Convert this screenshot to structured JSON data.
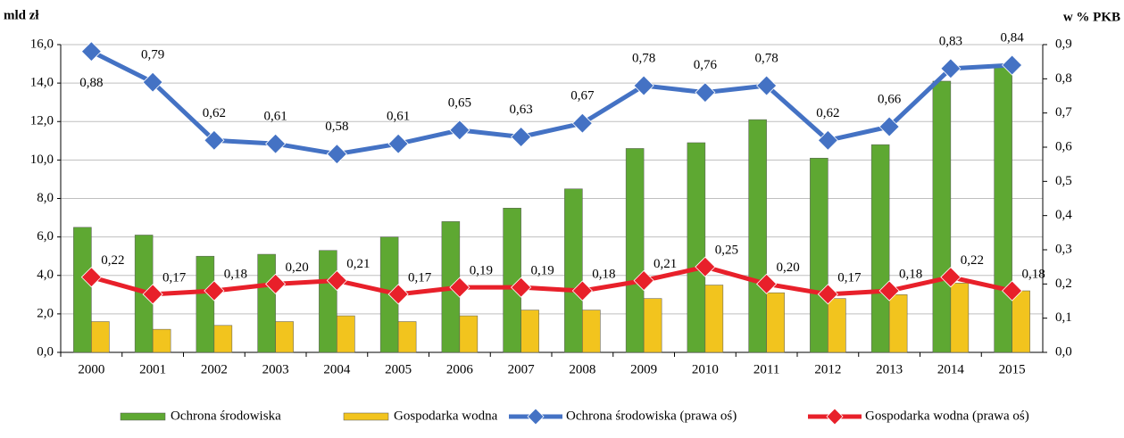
{
  "chart_data": {
    "type": "bar",
    "y_label": "mld zł",
    "y2_label": "w % PKB",
    "categories": [
      "2000",
      "2001",
      "2002",
      "2003",
      "2004",
      "2005",
      "2006",
      "2007",
      "2008",
      "2009",
      "2010",
      "2011",
      "2012",
      "2013",
      "2014",
      "2015"
    ],
    "ylim": [
      0,
      16
    ],
    "yticks": [
      {
        "value": 0,
        "label": "0,0"
      },
      {
        "value": 2,
        "label": "2,0"
      },
      {
        "value": 4,
        "label": "4,0"
      },
      {
        "value": 6,
        "label": "6,0"
      },
      {
        "value": 8,
        "label": "8,0"
      },
      {
        "value": 10,
        "label": "10,0"
      },
      {
        "value": 12,
        "label": "12,0"
      },
      {
        "value": 14,
        "label": "14,0"
      },
      {
        "value": 16,
        "label": "16,0"
      }
    ],
    "y2lim": [
      0,
      0.9
    ],
    "y2ticks": [
      {
        "value": 0,
        "label": "0,0"
      },
      {
        "value": 0.1,
        "label": "0,1"
      },
      {
        "value": 0.2,
        "label": "0,2"
      },
      {
        "value": 0.3,
        "label": "0,3"
      },
      {
        "value": 0.4,
        "label": "0,4"
      },
      {
        "value": 0.5,
        "label": "0,5"
      },
      {
        "value": 0.6,
        "label": "0,6"
      },
      {
        "value": 0.7,
        "label": "0,7"
      },
      {
        "value": 0.8,
        "label": "0,8"
      },
      {
        "value": 0.9,
        "label": "0,9"
      }
    ],
    "grid": true,
    "legend": "bottom",
    "series": [
      {
        "name": "Ochrona środowiska",
        "type": "bar",
        "color": "#5ea832",
        "values": [
          6.5,
          6.1,
          5.0,
          5.1,
          5.3,
          6.0,
          6.8,
          7.5,
          8.5,
          10.6,
          10.9,
          12.1,
          10.1,
          10.8,
          14.1,
          14.9
        ]
      },
      {
        "name": "Gospodarka wodna",
        "type": "bar",
        "color": "#f2c41e",
        "values": [
          1.6,
          1.2,
          1.4,
          1.6,
          1.9,
          1.6,
          1.9,
          2.2,
          2.2,
          2.8,
          3.5,
          3.1,
          2.8,
          3.0,
          3.6,
          3.2
        ]
      },
      {
        "name": "Ochrona środowiska (prawa oś)",
        "type": "line",
        "axis": "y2",
        "color": "#4472c4",
        "values": [
          0.88,
          0.79,
          0.62,
          0.61,
          0.58,
          0.61,
          0.65,
          0.63,
          0.67,
          0.78,
          0.76,
          0.78,
          0.62,
          0.66,
          0.83,
          0.84
        ],
        "value_labels": [
          "0,88",
          "0,79",
          "0,62",
          "0,61",
          "0,58",
          "0,61",
          "0,65",
          "0,63",
          "0,67",
          "0,78",
          "0,76",
          "0,78",
          "0,62",
          "0,66",
          "0,83",
          "0,84"
        ]
      },
      {
        "name": "Gospodarka wodna (prawa oś)",
        "type": "line",
        "axis": "y2",
        "color": "#e8202a",
        "values": [
          0.22,
          0.17,
          0.18,
          0.2,
          0.21,
          0.17,
          0.19,
          0.19,
          0.18,
          0.21,
          0.25,
          0.2,
          0.17,
          0.18,
          0.22,
          0.18
        ],
        "value_labels": [
          "0,22",
          "0,17",
          "0,18",
          "0,20",
          "0,21",
          "0,17",
          "0,19",
          "0,19",
          "0,18",
          "0,21",
          "0,25",
          "0,20",
          "0,17",
          "0,18",
          "0,22",
          "0,18"
        ]
      }
    ]
  }
}
